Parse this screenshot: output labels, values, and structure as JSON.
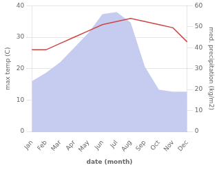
{
  "chart_data": {
    "type": "line",
    "xlabel": "date (month)",
    "ylabel": "max temp (C)",
    "y2label": "med. precipitation (kg/m2)",
    "categories": [
      "Jan",
      "Feb",
      "Mar",
      "Apr",
      "May",
      "Jun",
      "Jul",
      "Aug",
      "Sep",
      "Oct",
      "Nov",
      "Dec"
    ],
    "series": [
      {
        "type": "area",
        "axis": "y2",
        "color": "#c5ccf0",
        "values": [
          24,
          28,
          33,
          40,
          47,
          56,
          57,
          52,
          31,
          20,
          19,
          19
        ]
      },
      {
        "type": "line",
        "color": "#cc4444",
        "values": [
          26,
          26,
          28,
          30,
          32,
          34,
          35,
          36,
          35,
          34,
          33,
          28.5
        ]
      }
    ],
    "ylim": [
      0,
      40
    ],
    "yticks": [
      0,
      10,
      20,
      30,
      40
    ],
    "y2lim": [
      0,
      60
    ],
    "y2ticks": [
      0,
      10,
      20,
      30,
      40,
      50,
      60
    ],
    "grid": true
  }
}
